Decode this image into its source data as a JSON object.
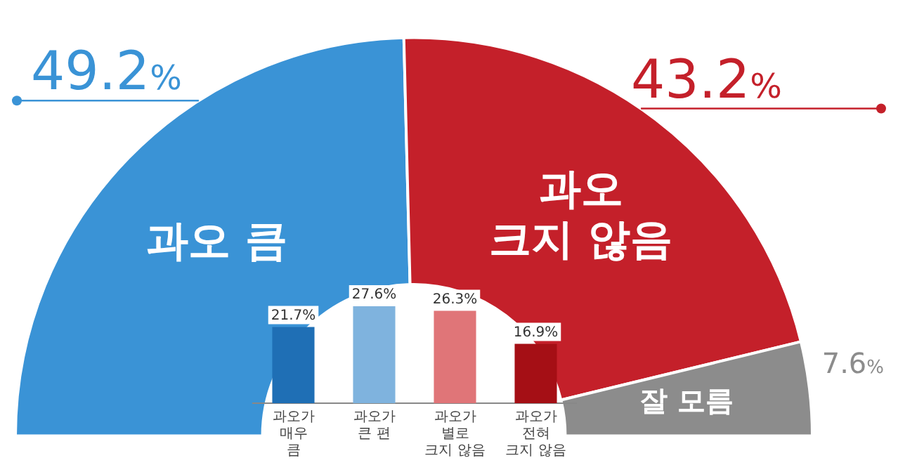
{
  "chart_data": [
    {
      "type": "donut",
      "categories": [
        "과오 큼",
        "과오\n크지 않음",
        "잘 모름"
      ],
      "values": [
        49.2,
        43.2,
        7.6
      ],
      "colors": [
        "#3a93d6",
        "#c4202a",
        "#8c8c8c"
      ],
      "value_labels": [
        "49.2%",
        "43.2%",
        "7.6%"
      ],
      "legend": false
    },
    {
      "type": "bar",
      "categories": [
        "과오가\n매우\n큼",
        "과오가\n큰 편",
        "과오가\n별로\n크지 않음",
        "과오가\n전혀\n크지 않음"
      ],
      "values": [
        21.7,
        27.6,
        26.3,
        16.9
      ],
      "colors": [
        "#1f6fb5",
        "#7fb3de",
        "#e07578",
        "#a50f15"
      ],
      "value_labels": [
        "21.7%",
        "27.6%",
        "26.3%",
        "16.9%"
      ],
      "tick_labels": "x",
      "grid": false,
      "legend": false
    }
  ]
}
